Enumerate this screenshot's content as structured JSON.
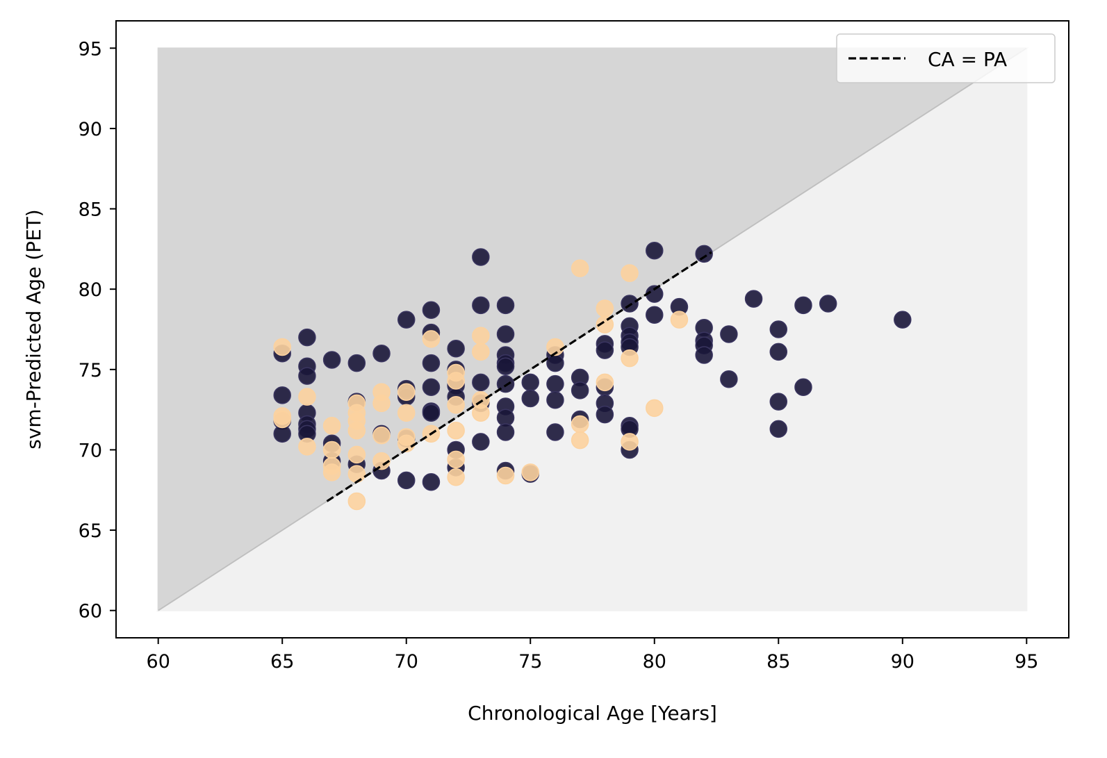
{
  "chart_data": {
    "type": "scatter",
    "title": "",
    "xlabel": "Chronological Age [Years]",
    "ylabel": "svm-Predicted Age (PET)",
    "xlim": [
      58.3,
      96.7
    ],
    "ylim": [
      58.3,
      96.7
    ],
    "xticks": [
      60,
      65,
      70,
      75,
      80,
      85,
      90,
      95
    ],
    "yticks": [
      60,
      65,
      70,
      75,
      80,
      85,
      90,
      95
    ],
    "grid": false,
    "legend": {
      "placement": "top-right",
      "entries": [
        {
          "label": "CA = PA",
          "style": "dashed-line",
          "color": "#000000"
        }
      ]
    },
    "background_regions": [
      {
        "shape": "upper-triangle",
        "vertices": [
          [
            60,
            60
          ],
          [
            60,
            95
          ],
          [
            95,
            95
          ]
        ],
        "color": "#d6d6d6"
      },
      {
        "shape": "lower-triangle",
        "vertices": [
          [
            60,
            60
          ],
          [
            95,
            60
          ],
          [
            95,
            95
          ]
        ],
        "color": "#f1f1f1"
      }
    ],
    "reference_line": {
      "label": "CA = PA",
      "x": [
        66.8,
        82.3
      ],
      "y": [
        66.8,
        82.3
      ],
      "style": "dashed",
      "color": "#000000"
    },
    "series": [
      {
        "color": "#1a1639",
        "points": [
          [
            65,
            76.0
          ],
          [
            65,
            73.4
          ],
          [
            65,
            71.8
          ],
          [
            65,
            71.0
          ],
          [
            66,
            77.0
          ],
          [
            66,
            75.2
          ],
          [
            66,
            74.6
          ],
          [
            66,
            72.3
          ],
          [
            66,
            71.6
          ],
          [
            66,
            71.3
          ],
          [
            66,
            71.0
          ],
          [
            67,
            75.6
          ],
          [
            67,
            70.4
          ],
          [
            67,
            69.3
          ],
          [
            68,
            75.4
          ],
          [
            68,
            73.0
          ],
          [
            68,
            69.1
          ],
          [
            69,
            76.0
          ],
          [
            69,
            71.0
          ],
          [
            69,
            68.7
          ],
          [
            70,
            78.1
          ],
          [
            70,
            73.8
          ],
          [
            70,
            73.3
          ],
          [
            70,
            70.7
          ],
          [
            70,
            68.1
          ],
          [
            71,
            78.7
          ],
          [
            71,
            77.3
          ],
          [
            71,
            75.4
          ],
          [
            71,
            73.9
          ],
          [
            71,
            72.4
          ],
          [
            71,
            72.3
          ],
          [
            71,
            68.0
          ],
          [
            72,
            76.3
          ],
          [
            72,
            75.0
          ],
          [
            72,
            74.0
          ],
          [
            72,
            73.3
          ],
          [
            72,
            70.0
          ],
          [
            72,
            68.9
          ],
          [
            73,
            82.0
          ],
          [
            73,
            79.0
          ],
          [
            73,
            74.2
          ],
          [
            73,
            72.9
          ],
          [
            73,
            70.5
          ],
          [
            74,
            79.0
          ],
          [
            74,
            77.2
          ],
          [
            74,
            75.9
          ],
          [
            74,
            75.4
          ],
          [
            74,
            75.2
          ],
          [
            74,
            74.1
          ],
          [
            74,
            72.7
          ],
          [
            74,
            72.0
          ],
          [
            74,
            71.1
          ],
          [
            74,
            68.7
          ],
          [
            75,
            74.2
          ],
          [
            75,
            73.2
          ],
          [
            75,
            68.5
          ],
          [
            76,
            75.9
          ],
          [
            76,
            75.4
          ],
          [
            76,
            74.1
          ],
          [
            76,
            73.1
          ],
          [
            76,
            71.1
          ],
          [
            77,
            74.5
          ],
          [
            77,
            73.7
          ],
          [
            77,
            71.9
          ],
          [
            78,
            76.6
          ],
          [
            78,
            76.2
          ],
          [
            78,
            73.9
          ],
          [
            78,
            72.9
          ],
          [
            78,
            72.2
          ],
          [
            79,
            79.1
          ],
          [
            79,
            77.7
          ],
          [
            79,
            77.1
          ],
          [
            79,
            76.7
          ],
          [
            79,
            76.4
          ],
          [
            79,
            71.5
          ],
          [
            79,
            71.3
          ],
          [
            79,
            70.0
          ],
          [
            80,
            82.4
          ],
          [
            80,
            79.7
          ],
          [
            80,
            78.4
          ],
          [
            81,
            78.9
          ],
          [
            82,
            82.2
          ],
          [
            82,
            77.6
          ],
          [
            82,
            76.8
          ],
          [
            82,
            76.5
          ],
          [
            82,
            75.9
          ],
          [
            83,
            77.2
          ],
          [
            83,
            74.4
          ],
          [
            84,
            79.4
          ],
          [
            85,
            77.5
          ],
          [
            85,
            76.1
          ],
          [
            85,
            73.0
          ],
          [
            85,
            71.3
          ],
          [
            86,
            79.0
          ],
          [
            86,
            73.9
          ],
          [
            87,
            79.1
          ],
          [
            90,
            78.1
          ]
        ]
      },
      {
        "color": "#fcd29f",
        "points": [
          [
            65,
            76.4
          ],
          [
            65,
            72.1
          ],
          [
            65,
            71.9
          ],
          [
            66,
            73.3
          ],
          [
            66,
            70.2
          ],
          [
            67,
            71.5
          ],
          [
            67,
            70.0
          ],
          [
            67,
            69.0
          ],
          [
            67,
            68.6
          ],
          [
            68,
            72.9
          ],
          [
            68,
            72.3
          ],
          [
            68,
            71.8
          ],
          [
            68,
            71.2
          ],
          [
            68,
            69.7
          ],
          [
            68,
            68.5
          ],
          [
            68,
            66.8
          ],
          [
            69,
            73.6
          ],
          [
            69,
            72.9
          ],
          [
            69,
            70.9
          ],
          [
            69,
            69.3
          ],
          [
            70,
            73.6
          ],
          [
            70,
            72.3
          ],
          [
            70,
            70.8
          ],
          [
            70,
            70.4
          ],
          [
            71,
            76.9
          ],
          [
            71,
            71.0
          ],
          [
            72,
            74.8
          ],
          [
            72,
            74.3
          ],
          [
            72,
            72.8
          ],
          [
            72,
            71.2
          ],
          [
            72,
            69.4
          ],
          [
            72,
            68.3
          ],
          [
            73,
            77.1
          ],
          [
            73,
            76.1
          ],
          [
            73,
            73.1
          ],
          [
            73,
            72.3
          ],
          [
            74,
            68.4
          ],
          [
            75,
            68.6
          ],
          [
            76,
            76.4
          ],
          [
            77,
            81.3
          ],
          [
            77,
            71.6
          ],
          [
            77,
            70.6
          ],
          [
            78,
            78.8
          ],
          [
            78,
            77.8
          ],
          [
            78,
            74.2
          ],
          [
            79,
            81.0
          ],
          [
            79,
            75.7
          ],
          [
            79,
            70.5
          ],
          [
            80,
            72.6
          ],
          [
            81,
            78.1
          ]
        ]
      }
    ]
  }
}
